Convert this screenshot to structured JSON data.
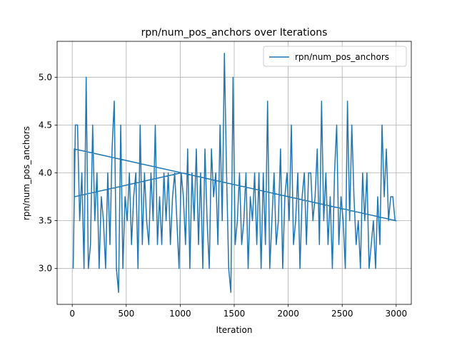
{
  "chart_data": {
    "type": "line",
    "title": "rpn/num_pos_anchors over Iterations",
    "x_label": "Iteration",
    "y_label": "rpn/num_pos_anchors",
    "xlim": [
      -140,
      3140
    ],
    "ylim": [
      2.625,
      5.375
    ],
    "xticks": [
      0,
      500,
      1000,
      1500,
      2000,
      2500,
      3000
    ],
    "yticks": [
      {
        "value": 3.0,
        "label": "3.0"
      },
      3.5,
      {
        "value": 4.0,
        "label": "4.0"
      },
      4.5,
      {
        "value": 5.0,
        "label": "5.0"
      }
    ],
    "grid": true,
    "legend": "upper right",
    "x": [
      9,
      29,
      49,
      69,
      89,
      109,
      129,
      149,
      169,
      189,
      209,
      229,
      249,
      269,
      289,
      309,
      329,
      349,
      369,
      389,
      409,
      429,
      449,
      469,
      489,
      509,
      529,
      549,
      569,
      589,
      609,
      629,
      649,
      669,
      689,
      709,
      729,
      749,
      769,
      789,
      809,
      829,
      849,
      869,
      889,
      909,
      929,
      949,
      969,
      989,
      1009,
      1029,
      1049,
      1069,
      1089,
      1109,
      1129,
      1149,
      1169,
      1189,
      1209,
      1229,
      1249,
      1269,
      1289,
      1309,
      1329,
      1349,
      1369,
      1389,
      1409,
      1429,
      1449,
      1469,
      1489,
      1509,
      1529,
      1549,
      1569,
      1589,
      1609,
      1629,
      1649,
      1669,
      1689,
      1709,
      1729,
      1749,
      1769,
      1789,
      1809,
      1829,
      1849,
      1869,
      1889,
      1909,
      1929,
      1949,
      1969,
      1989,
      2009,
      2029,
      2049,
      2069,
      2089,
      2109,
      2129,
      2149,
      2169,
      2189,
      2209,
      2229,
      2249,
      2269,
      2289,
      2309,
      2329,
      2349,
      2369,
      2389,
      2409,
      2429,
      2449,
      2469,
      2489,
      2509,
      2529,
      2549,
      2569,
      2589,
      2609,
      2629,
      2649,
      2669,
      2689,
      2709,
      2729,
      2749,
      2769,
      2789,
      2809,
      2829,
      2849,
      2869,
      2889,
      2909,
      2929,
      2949,
      2969,
      2989,
      2999,
      19,
      19,
      1009
    ],
    "series": [
      {
        "name": "rpn/num_pos_anchors",
        "color": "#1f77b4",
        "values": [
          3.0,
          4.5,
          4.5,
          3.5,
          4.0,
          3.0,
          5.0,
          3.0,
          3.25,
          4.5,
          3.5,
          4.0,
          3.0,
          3.75,
          3.5,
          3.0,
          4.0,
          3.25,
          4.25,
          4.75,
          3.0,
          2.75,
          4.5,
          3.0,
          3.75,
          3.5,
          4.0,
          3.25,
          3.75,
          4.0,
          3.0,
          4.5,
          3.25,
          4.0,
          3.5,
          3.25,
          4.0,
          3.5,
          4.5,
          3.25,
          3.75,
          3.25,
          4.0,
          3.5,
          4.0,
          3.25,
          3.75,
          4.0,
          3.5,
          3.0,
          4.0,
          3.75,
          3.25,
          4.25,
          3.0,
          4.0,
          3.5,
          4.25,
          3.25,
          4.0,
          3.0,
          4.25,
          3.5,
          3.0,
          4.25,
          3.75,
          4.0,
          3.25,
          4.5,
          3.5,
          5.25,
          4.0,
          3.0,
          2.75,
          5.0,
          3.25,
          3.5,
          4.0,
          3.25,
          3.5,
          4.0,
          3.0,
          3.75,
          3.5,
          4.0,
          3.25,
          4.0,
          3.0,
          4.0,
          3.25,
          4.75,
          3.0,
          3.5,
          4.0,
          3.25,
          3.5,
          4.25,
          3.0,
          3.75,
          4.0,
          3.5,
          4.5,
          3.25,
          3.5,
          4.0,
          3.0,
          3.75,
          4.0,
          3.25,
          4.0,
          4.0,
          3.5,
          3.75,
          4.25,
          3.25,
          4.75,
          3.5,
          4.0,
          3.25,
          3.75,
          3.0,
          4.0,
          4.5,
          3.25,
          3.75,
          3.5,
          3.0,
          4.75,
          3.5,
          4.5,
          3.75,
          3.25,
          3.5,
          3.0,
          4.0,
          3.5,
          4.0,
          3.0,
          3.25,
          3.5,
          3.0,
          3.75,
          3.25,
          4.5,
          3.75,
          4.25,
          3.5,
          3.75,
          3.75,
          3.5,
          3.5,
          4.25,
          3.75,
          4.0
        ]
      }
    ]
  }
}
